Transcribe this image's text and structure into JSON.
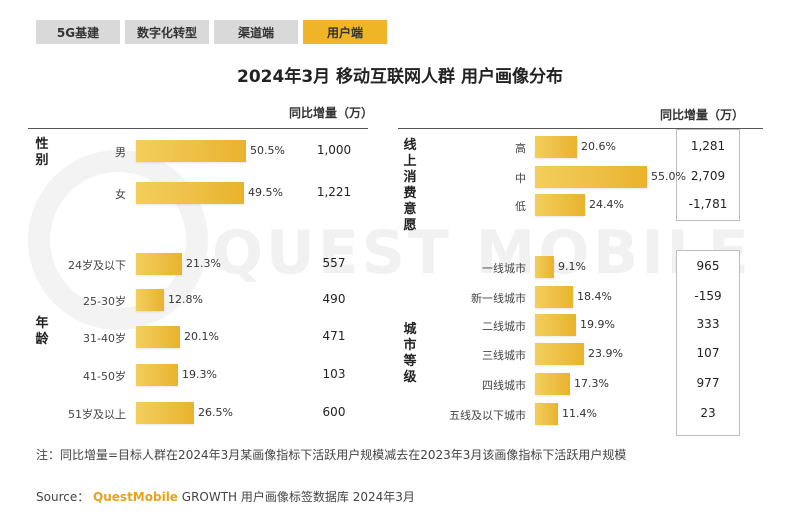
{
  "tabs": [
    {
      "label": "5G基建",
      "active": false
    },
    {
      "label": "数字化转型",
      "active": false
    },
    {
      "label": "渠道端",
      "active": false
    },
    {
      "label": "用户端",
      "active": true
    }
  ],
  "title": "2024年3月 移动互联网人群 用户画像分布",
  "watermark": "QUEST MOBILE",
  "colors": {
    "bar": "#eec24a",
    "active_tab": "#f0b429",
    "brand": "#e9a21c"
  },
  "chart_data": [
    {
      "type": "bar",
      "panel": "left",
      "yoy_header": "同比增量（万）",
      "groups": [
        {
          "label": "性别",
          "categories": [
            "男",
            "女"
          ],
          "values": [
            50.5,
            49.5
          ],
          "value_labels": [
            "50.5%",
            "49.5%"
          ],
          "yoy": [
            "1,000",
            "1,221"
          ]
        },
        {
          "label": "年龄",
          "categories": [
            "24岁及以下",
            "25-30岁",
            "31-40岁",
            "41-50岁",
            "51岁及以上"
          ],
          "values": [
            21.3,
            12.8,
            20.1,
            19.3,
            26.5
          ],
          "value_labels": [
            "21.3%",
            "12.8%",
            "20.1%",
            "19.3%",
            "26.5%"
          ],
          "yoy": [
            "557",
            "490",
            "471",
            "103",
            "600"
          ]
        }
      ]
    },
    {
      "type": "bar",
      "panel": "right",
      "yoy_header": "同比增量（万）",
      "groups": [
        {
          "label": "线上消费意愿",
          "categories": [
            "高",
            "中",
            "低"
          ],
          "values": [
            20.6,
            55.0,
            24.4
          ],
          "value_labels": [
            "20.6%",
            "55.0%",
            "24.4%"
          ],
          "yoy": [
            "1,281",
            "2,709",
            "-1,781"
          ]
        },
        {
          "label": "城市等级",
          "categories": [
            "一线城市",
            "新一线城市",
            "二线城市",
            "三线城市",
            "四线城市",
            "五线及以下城市"
          ],
          "values": [
            9.1,
            18.4,
            19.9,
            23.9,
            17.3,
            11.4
          ],
          "value_labels": [
            "9.1%",
            "18.4%",
            "19.9%",
            "23.9%",
            "17.3%",
            "11.4%"
          ],
          "yoy": [
            "965",
            "-159",
            "333",
            "107",
            "977",
            "23"
          ]
        }
      ]
    }
  ],
  "note": "注：同比增量=目标人群在2024年3月某画像指标下活跃用户规模减去在2023年3月该画像指标下活跃用户规模",
  "source": {
    "prefix": "Source：",
    "brand": "QuestMobile",
    "suffix": "GROWTH 用户画像标签数据库 2024年3月"
  }
}
